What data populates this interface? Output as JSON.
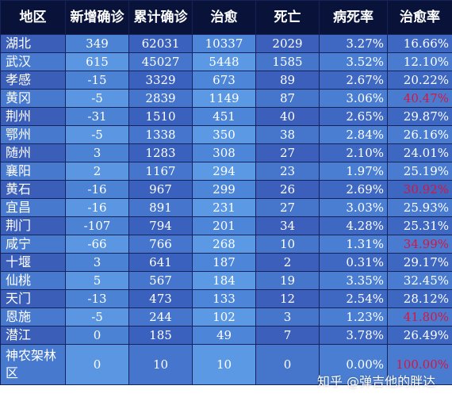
{
  "headers": [
    "地区",
    "新增确诊",
    "累计确诊",
    "治愈",
    "死亡",
    "病死率",
    "治愈率"
  ],
  "rows": [
    {
      "region": "湖北",
      "new": "349",
      "total": "62031",
      "cured": "10337",
      "dead": "2029",
      "death_rate": "3.27%",
      "cure_rate": "16.66%",
      "highlight": false
    },
    {
      "region": "武汉",
      "new": "615",
      "total": "45027",
      "cured": "5448",
      "dead": "1585",
      "death_rate": "3.52%",
      "cure_rate": "12.10%",
      "highlight": false
    },
    {
      "region": "孝感",
      "new": "-15",
      "total": "3329",
      "cured": "673",
      "dead": "89",
      "death_rate": "2.67%",
      "cure_rate": "20.22%",
      "highlight": false
    },
    {
      "region": "黄冈",
      "new": "-5",
      "total": "2839",
      "cured": "1149",
      "dead": "87",
      "death_rate": "3.06%",
      "cure_rate": "40.47%",
      "highlight": true
    },
    {
      "region": "荆州",
      "new": "-31",
      "total": "1510",
      "cured": "451",
      "dead": "40",
      "death_rate": "2.65%",
      "cure_rate": "29.87%",
      "highlight": false
    },
    {
      "region": "鄂州",
      "new": "-5",
      "total": "1338",
      "cured": "350",
      "dead": "38",
      "death_rate": "2.84%",
      "cure_rate": "26.16%",
      "highlight": false
    },
    {
      "region": "随州",
      "new": "3",
      "total": "1283",
      "cured": "308",
      "dead": "27",
      "death_rate": "2.10%",
      "cure_rate": "24.01%",
      "highlight": false
    },
    {
      "region": "襄阳",
      "new": "2",
      "total": "1167",
      "cured": "294",
      "dead": "23",
      "death_rate": "1.97%",
      "cure_rate": "25.19%",
      "highlight": false
    },
    {
      "region": "黄石",
      "new": "-16",
      "total": "967",
      "cured": "299",
      "dead": "26",
      "death_rate": "2.69%",
      "cure_rate": "30.92%",
      "highlight": true
    },
    {
      "region": "宜昌",
      "new": "-16",
      "total": "891",
      "cured": "231",
      "dead": "27",
      "death_rate": "3.03%",
      "cure_rate": "25.93%",
      "highlight": false
    },
    {
      "region": "荆门",
      "new": "-107",
      "total": "794",
      "cured": "201",
      "dead": "34",
      "death_rate": "4.28%",
      "cure_rate": "25.31%",
      "highlight": false
    },
    {
      "region": "咸宁",
      "new": "-66",
      "total": "766",
      "cured": "268",
      "dead": "10",
      "death_rate": "1.31%",
      "cure_rate": "34.99%",
      "highlight": true
    },
    {
      "region": "十堰",
      "new": "3",
      "total": "641",
      "cured": "187",
      "dead": "2",
      "death_rate": "0.31%",
      "cure_rate": "29.17%",
      "highlight": false
    },
    {
      "region": "仙桃",
      "new": "5",
      "total": "567",
      "cured": "184",
      "dead": "19",
      "death_rate": "3.35%",
      "cure_rate": "32.45%",
      "highlight": false
    },
    {
      "region": "天门",
      "new": "-13",
      "total": "473",
      "cured": "133",
      "dead": "12",
      "death_rate": "2.54%",
      "cure_rate": "28.12%",
      "highlight": false
    },
    {
      "region": "恩施",
      "new": "-5",
      "total": "244",
      "cured": "102",
      "dead": "3",
      "death_rate": "1.23%",
      "cure_rate": "41.80%",
      "highlight": true
    },
    {
      "region": "潜江",
      "new": "0",
      "total": "185",
      "cured": "49",
      "dead": "7",
      "death_rate": "3.78%",
      "cure_rate": "26.49%",
      "highlight": false
    },
    {
      "region": "神农架林区",
      "new": "0",
      "total": "10",
      "cured": "10",
      "dead": "0",
      "death_rate": "0.00%",
      "cure_rate": "100.00%",
      "highlight": true
    }
  ],
  "watermark": "知乎 @弹吉他的胖达",
  "colors": {
    "header_bg": "#09133a",
    "header_text": "#ffffff",
    "cell_text": "#ffffff",
    "highlight_text": "#d9143e"
  }
}
